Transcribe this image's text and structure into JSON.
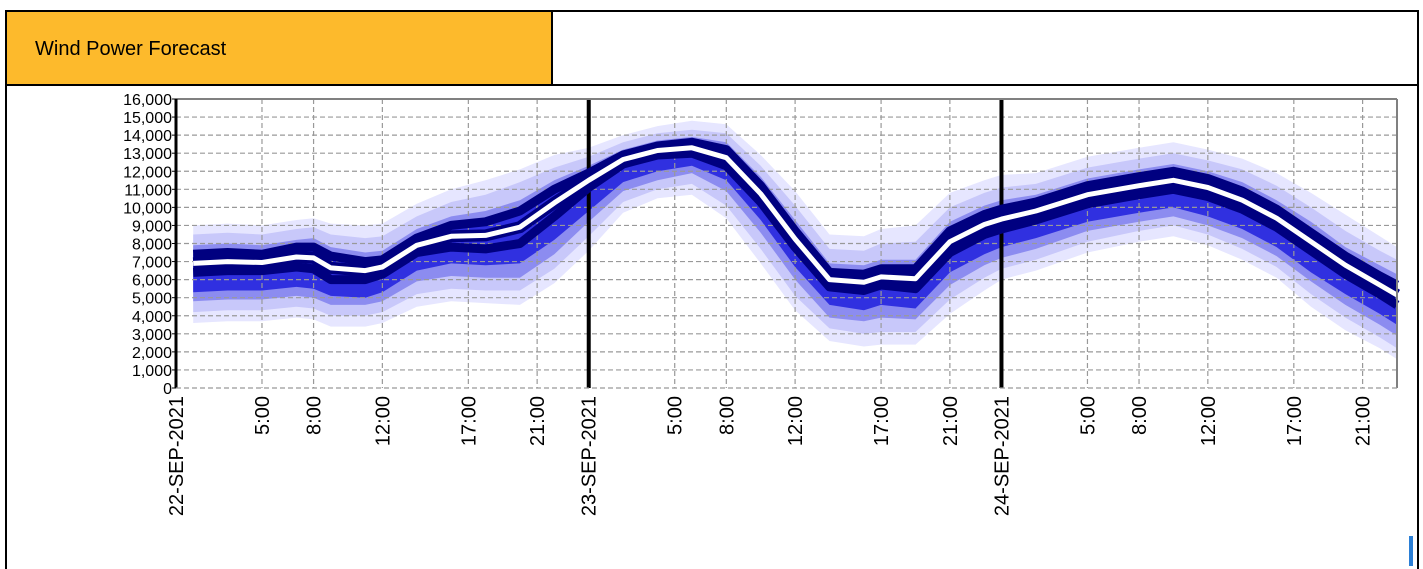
{
  "header": {
    "title": "Wind Power Forecast"
  },
  "chart_data": {
    "type": "area",
    "title": "Wind Power Forecast",
    "xlabel": "",
    "ylabel": "",
    "ylim": [
      0,
      16000
    ],
    "y_ticks": [
      0,
      1000,
      2000,
      3000,
      4000,
      5000,
      6000,
      7000,
      8000,
      9000,
      10000,
      11000,
      12000,
      13000,
      14000,
      15000,
      16000
    ],
    "y_tick_labels": [
      "0",
      "1,000",
      "2,000",
      "3,000",
      "4,000",
      "5,000",
      "6,000",
      "7,000",
      "8,000",
      "9,000",
      "10,000",
      "11,000",
      "12,000",
      "13,000",
      "14,000",
      "15,000",
      "16,000"
    ],
    "x_unit": "hours from 22-SEP-2021 00:00",
    "xlim": [
      0,
      71
    ],
    "x_tick_labels": [
      {
        "x": 0,
        "label": "22-SEP-2021"
      },
      {
        "x": 5,
        "label": "5:00"
      },
      {
        "x": 8,
        "label": "8:00"
      },
      {
        "x": 12,
        "label": "12:00"
      },
      {
        "x": 17,
        "label": "17:00"
      },
      {
        "x": 21,
        "label": "21:00"
      },
      {
        "x": 24,
        "label": "23-SEP-2021"
      },
      {
        "x": 29,
        "label": "5:00"
      },
      {
        "x": 32,
        "label": "8:00"
      },
      {
        "x": 36,
        "label": "12:00"
      },
      {
        "x": 41,
        "label": "17:00"
      },
      {
        "x": 45,
        "label": "21:00"
      },
      {
        "x": 48,
        "label": "24-SEP-2021"
      },
      {
        "x": 53,
        "label": "5:00"
      },
      {
        "x": 56,
        "label": "8:00"
      },
      {
        "x": 60,
        "label": "12:00"
      },
      {
        "x": 65,
        "label": "17:00"
      },
      {
        "x": 69,
        "label": "21:00"
      }
    ],
    "day_separators": [
      24,
      48
    ],
    "grid": true,
    "x": [
      1,
      3,
      5,
      7,
      8,
      9,
      11,
      12,
      14,
      16,
      18,
      20,
      22,
      24,
      26,
      28,
      30,
      32,
      34,
      36,
      38,
      40,
      41,
      43,
      45,
      47,
      48,
      50,
      53,
      56,
      58,
      60,
      62,
      64,
      66,
      68,
      70,
      71
    ],
    "series": [
      {
        "values": [
          6400,
          6500,
          6500,
          6700,
          6600,
          6000,
          6000,
          6300,
          7500,
          7800,
          7700,
          8000,
          9500,
          11100,
          12400,
          12900,
          13000,
          12300,
          10300,
          7800,
          5600,
          5400,
          5700,
          5500,
          7500,
          8500,
          8800,
          9300,
          10200,
          10700,
          11000,
          10600,
          9900,
          8900,
          7600,
          6300,
          5200,
          4600
        ]
      },
      {
        "values": [
          7400,
          7500,
          7400,
          7800,
          7800,
          7300,
          7000,
          7100,
          8300,
          9000,
          9200,
          9800,
          11000,
          11900,
          12900,
          13400,
          13600,
          13200,
          11200,
          8700,
          6400,
          6300,
          6600,
          6600,
          8700,
          9600,
          9900,
          10300,
          11200,
          11700,
          12000,
          11600,
          10900,
          9900,
          8600,
          7300,
          6200,
          5700
        ]
      },
      {
        "values": [
          5300,
          5400,
          5400,
          5600,
          5500,
          5100,
          5000,
          5300,
          6500,
          6900,
          6800,
          6900,
          8200,
          9800,
          11400,
          12000,
          12300,
          11500,
          9300,
          6700,
          4600,
          4300,
          4600,
          4400,
          6400,
          7400,
          7800,
          8300,
          9200,
          9700,
          10000,
          9500,
          8800,
          7800,
          6400,
          5200,
          4100,
          3500
        ]
      },
      {
        "values": [
          7900,
          8000,
          7900,
          8200,
          8300,
          7800,
          7500,
          7600,
          8800,
          9500,
          9800,
          10400,
          11500,
          12300,
          13200,
          13700,
          13900,
          13600,
          11700,
          9300,
          6900,
          6800,
          7100,
          7100,
          9200,
          10100,
          10400,
          10700,
          11600,
          12100,
          12400,
          12000,
          11400,
          10400,
          9200,
          7800,
          6800,
          6300
        ]
      },
      {
        "values": [
          4800,
          4900,
          4900,
          5100,
          5000,
          4600,
          4600,
          4800,
          5900,
          6200,
          6100,
          6100,
          7400,
          9200,
          10900,
          11500,
          11900,
          10900,
          8600,
          6000,
          3900,
          3700,
          3900,
          3800,
          5700,
          6800,
          7200,
          7700,
          8700,
          9200,
          9500,
          9000,
          8300,
          7300,
          5900,
          4600,
          3500,
          2900
        ]
      },
      {
        "values": [
          8500,
          8600,
          8500,
          8800,
          8900,
          8500,
          8300,
          8400,
          9500,
          10300,
          10700,
          11400,
          12200,
          12800,
          13600,
          14100,
          14300,
          14100,
          12300,
          10100,
          7700,
          7600,
          8000,
          8100,
          10000,
          10800,
          11100,
          11300,
          12200,
          12700,
          13000,
          12600,
          12100,
          11200,
          10000,
          8700,
          7600,
          7100
        ]
      },
      {
        "values": [
          4200,
          4300,
          4300,
          4500,
          4400,
          4000,
          4000,
          4200,
          5200,
          5500,
          5400,
          5400,
          6600,
          8400,
          10300,
          11000,
          11300,
          10100,
          7700,
          5100,
          3300,
          3000,
          3100,
          3100,
          4900,
          6100,
          6600,
          7100,
          8100,
          8700,
          9000,
          8500,
          7700,
          6700,
          5200,
          3900,
          2800,
          2200
        ]
      },
      {
        "values": [
          9000,
          9100,
          9000,
          9300,
          9400,
          9100,
          9000,
          9100,
          10200,
          11000,
          11500,
          12100,
          12900,
          13300,
          14000,
          14500,
          14800,
          14600,
          12900,
          10900,
          8500,
          8400,
          8800,
          9000,
          10800,
          11500,
          11800,
          11900,
          12800,
          13300,
          13600,
          13200,
          12700,
          11900,
          10800,
          9600,
          8400,
          7800
        ]
      },
      {
        "values": [
          3600,
          3700,
          3700,
          3900,
          3800,
          3400,
          3400,
          3600,
          4500,
          4800,
          4700,
          4600,
          5800,
          7600,
          9700,
          10500,
          10700,
          9400,
          6900,
          4300,
          2600,
          2300,
          2400,
          2400,
          4100,
          5400,
          6000,
          6500,
          7500,
          8100,
          8400,
          7900,
          7100,
          6100,
          4500,
          3200,
          2200,
          1600
        ]
      }
    ],
    "colors": {
      "band_outer": "#E6E6FF",
      "band_light": "#C8C8FA",
      "band_mid": "#8C8CF0",
      "band_dark": "#3030E0",
      "band_core": "#000080",
      "median": "#FFFFFF",
      "grid": "#999999",
      "day_separator": "#000000",
      "plot_border": "#808080"
    }
  }
}
